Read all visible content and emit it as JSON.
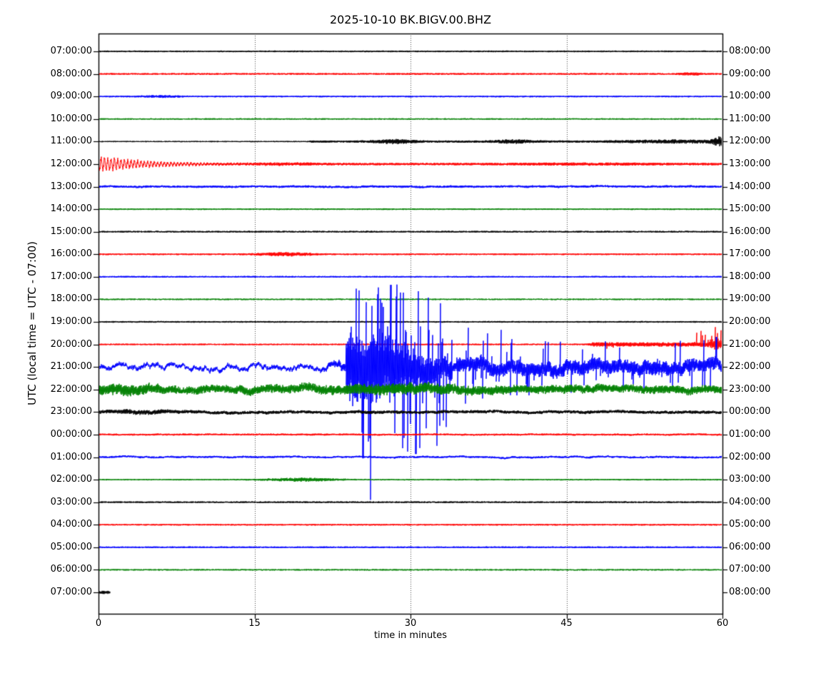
{
  "window": {
    "title": "2025-10-10 BK.BIGV.00.BHZ"
  },
  "chart_data": {
    "type": "line",
    "subtype": "seismogram-helicorder-dayplot",
    "title": "2025-10-10 BK.BIGV.00.BHZ",
    "xlabel": "time in minutes",
    "ylabel": "UTC (local time = UTC - 07:00)",
    "xlim": [
      0,
      60
    ],
    "xticks": [
      0,
      15,
      30,
      45,
      60
    ],
    "grid": {
      "vertical_dotted_at_minutes": [
        15,
        30,
        45
      ]
    },
    "interval_minutes": 60,
    "trace_color_cycle": [
      "#000000",
      "#ff0000",
      "#0000ff",
      "#008000"
    ],
    "left_axis": "UTC",
    "right_axis": "local time",
    "rows": [
      {
        "utc": "07:00:00",
        "local": "08:00:00",
        "color": "#000000",
        "base_noise": 1.2,
        "lf_noise": 0,
        "features": []
      },
      {
        "utc": "08:00:00",
        "local": "09:00:00",
        "color": "#ff0000",
        "base_noise": 1.25,
        "lf_noise": 0,
        "features": [
          {
            "type": "gauss",
            "center": 57,
            "sigma": 0.8,
            "amp": 1.2
          }
        ]
      },
      {
        "utc": "09:00:00",
        "local": "10:00:00",
        "color": "#0000ff",
        "base_noise": 1.2,
        "lf_noise": 0,
        "features": [
          {
            "type": "gauss",
            "center": 6,
            "sigma": 1.2,
            "amp": 0.9
          }
        ]
      },
      {
        "utc": "10:00:00",
        "local": "11:00:00",
        "color": "#008000",
        "base_noise": 1.1,
        "lf_noise": 0,
        "features": []
      },
      {
        "utc": "11:00:00",
        "local": "12:00:00",
        "color": "#000000",
        "base_noise": 0.9,
        "lf_noise": 0,
        "features": [
          {
            "type": "step",
            "start": 20,
            "end": 60,
            "amp": 0.7
          },
          {
            "type": "gauss",
            "center": 28.5,
            "sigma": 1.3,
            "amp": 2.2
          },
          {
            "type": "gauss",
            "center": 40,
            "sigma": 1.3,
            "amp": 1.8
          },
          {
            "type": "gauss",
            "center": 56,
            "sigma": 4,
            "amp": 1.4
          },
          {
            "type": "gauss",
            "center": 59.7,
            "sigma": 0.4,
            "amp": 5
          }
        ]
      },
      {
        "utc": "12:00:00",
        "local": "13:00:00",
        "color": "#ff0000",
        "base_noise": 1.7,
        "lf_noise": 0,
        "features": [
          {
            "type": "decay",
            "start": 0,
            "tau": 4.5,
            "amp": 12,
            "osc": true
          },
          {
            "type": "gauss",
            "center": 18,
            "sigma": 2.5,
            "amp": 0.8
          },
          {
            "type": "gauss",
            "center": 47,
            "sigma": 5,
            "amp": 0.7
          }
        ]
      },
      {
        "utc": "13:00:00",
        "local": "14:00:00",
        "color": "#0000ff",
        "base_noise": 1.6,
        "lf_noise": 0.5,
        "features": []
      },
      {
        "utc": "14:00:00",
        "local": "15:00:00",
        "color": "#008000",
        "base_noise": 1.15,
        "lf_noise": 0,
        "features": []
      },
      {
        "utc": "15:00:00",
        "local": "16:00:00",
        "color": "#000000",
        "base_noise": 1.25,
        "lf_noise": 0,
        "features": []
      },
      {
        "utc": "16:00:00",
        "local": "17:00:00",
        "color": "#ff0000",
        "base_noise": 1.2,
        "lf_noise": 0,
        "features": [
          {
            "type": "gauss",
            "center": 18,
            "sigma": 1.8,
            "amp": 2.0
          }
        ]
      },
      {
        "utc": "17:00:00",
        "local": "18:00:00",
        "color": "#0000ff",
        "base_noise": 1.2,
        "lf_noise": 0,
        "features": []
      },
      {
        "utc": "18:00:00",
        "local": "19:00:00",
        "color": "#008000",
        "base_noise": 1.1,
        "lf_noise": 0,
        "features": []
      },
      {
        "utc": "19:00:00",
        "local": "20:00:00",
        "color": "#000000",
        "base_noise": 1.2,
        "lf_noise": 0,
        "features": []
      },
      {
        "utc": "20:00:00",
        "local": "21:00:00",
        "color": "#ff0000",
        "base_noise": 1.15,
        "lf_noise": 0,
        "features": [
          {
            "type": "step",
            "start": 47,
            "end": 60,
            "amp": 1.9
          },
          {
            "type": "spikes",
            "start": 48,
            "end": 57.5,
            "prob": 0.04,
            "amp": 7,
            "up_bias": 0.6
          },
          {
            "type": "spikes",
            "start": 57.5,
            "end": 60,
            "prob": 0.3,
            "amp": 26,
            "up_bias": 0.85
          },
          {
            "type": "gauss",
            "center": 59.5,
            "sigma": 0.5,
            "amp": 5
          }
        ]
      },
      {
        "utc": "21:00:00",
        "local": "22:00:00",
        "color": "#0000ff",
        "base_noise": 2.5,
        "lf_noise": 5,
        "features": [
          {
            "type": "decay",
            "start": 23.8,
            "tau": 3,
            "amp": 35
          },
          {
            "type": "step",
            "start": 24,
            "end": 34,
            "amp": 12
          },
          {
            "type": "step",
            "start": 34,
            "end": 60,
            "amp": 7
          },
          {
            "type": "gauss",
            "center": 27.6,
            "sigma": 2.2,
            "amp": 18
          },
          {
            "type": "spikes",
            "start": 23.9,
            "end": 33.5,
            "prob": 0.5,
            "amp": 125
          },
          {
            "type": "spikes",
            "start": 33.5,
            "end": 43,
            "prob": 0.2,
            "amp": 55
          },
          {
            "type": "spikes",
            "start": 43,
            "end": 59,
            "prob": 0.15,
            "amp": 38
          },
          {
            "type": "spike",
            "minute": 25.4,
            "v": -128
          },
          {
            "type": "spike",
            "minute": 26.1,
            "v": -100
          },
          {
            "type": "spike",
            "minute": 27.3,
            "v": 132
          },
          {
            "type": "spike",
            "minute": 28.1,
            "v": 115
          },
          {
            "type": "spike",
            "minute": 30.5,
            "v": -122
          },
          {
            "type": "spike",
            "minute": 59.4,
            "v": 42
          }
        ]
      },
      {
        "utc": "22:00:00",
        "local": "23:00:00",
        "color": "#008000",
        "base_noise": 5.5,
        "lf_noise": 2,
        "features": [
          {
            "type": "gauss",
            "center": 2,
            "sigma": 2.5,
            "amp": 2.5
          },
          {
            "type": "gauss",
            "center": 29,
            "sigma": 5,
            "amp": 2.5
          }
        ]
      },
      {
        "utc": "23:00:00",
        "local": "00:00:00",
        "color": "#000000",
        "base_noise": 2.2,
        "lf_noise": 0.8,
        "features": [
          {
            "type": "gauss",
            "center": 4,
            "sigma": 2.5,
            "amp": 1.2
          }
        ]
      },
      {
        "utc": "00:00:00",
        "local": "01:00:00",
        "color": "#ff0000",
        "base_noise": 1.35,
        "lf_noise": 0.3,
        "features": []
      },
      {
        "utc": "01:00:00",
        "local": "02:00:00",
        "color": "#0000ff",
        "base_noise": 1.4,
        "lf_noise": 0.7,
        "features": []
      },
      {
        "utc": "02:00:00",
        "local": "03:00:00",
        "color": "#008000",
        "base_noise": 1.1,
        "lf_noise": 0,
        "features": [
          {
            "type": "gauss",
            "center": 19.5,
            "sigma": 2.2,
            "amp": 1.8
          }
        ]
      },
      {
        "utc": "03:00:00",
        "local": "04:00:00",
        "color": "#000000",
        "base_noise": 1.25,
        "lf_noise": 0,
        "features": []
      },
      {
        "utc": "04:00:00",
        "local": "05:00:00",
        "color": "#ff0000",
        "base_noise": 1.2,
        "lf_noise": 0,
        "features": []
      },
      {
        "utc": "05:00:00",
        "local": "06:00:00",
        "color": "#0000ff",
        "base_noise": 1.25,
        "lf_noise": 0,
        "features": []
      },
      {
        "utc": "06:00:00",
        "local": "07:00:00",
        "color": "#008000",
        "base_noise": 1.1,
        "lf_noise": 0,
        "features": []
      },
      {
        "utc": "07:00:00",
        "local": "08:00:00",
        "color": "#000000",
        "base_noise": 2.3,
        "lf_noise": 0,
        "extent": [
          0,
          1.15
        ],
        "features": []
      }
    ],
    "notable_events": [
      {
        "row_utc": "12:00:00",
        "description": "decaying oscillatory event coda from minute 0 through ~14, elevated ripple rest of hour"
      },
      {
        "row_utc": "11:00:00",
        "description": "small bursts near minutes 28-30 and 40, rising noise toward end of row"
      },
      {
        "row_utc": "16:00:00",
        "description": "minor noise burst near minutes 16-20"
      },
      {
        "row_utc": "20:00:00",
        "description": "elevated noise from ~minute 47 with upward spikes near minutes 58-60"
      },
      {
        "row_utc": "21:00:00",
        "description": "large-amplitude event burst minutes ~24-33 with spikes spanning adjacent rows; elevated wandering noise entire hour"
      },
      {
        "row_utc": "22:00:00",
        "description": "elevated high-frequency noise entire hour"
      },
      {
        "row_utc": "23:00:00",
        "description": "moderately elevated noise"
      },
      {
        "row_utc": "02:00:00",
        "description": "minor noise bump near minutes 17-22"
      },
      {
        "row_utc": "07:00:00",
        "description": "final row trace ends ~1 minute after start"
      }
    ]
  }
}
